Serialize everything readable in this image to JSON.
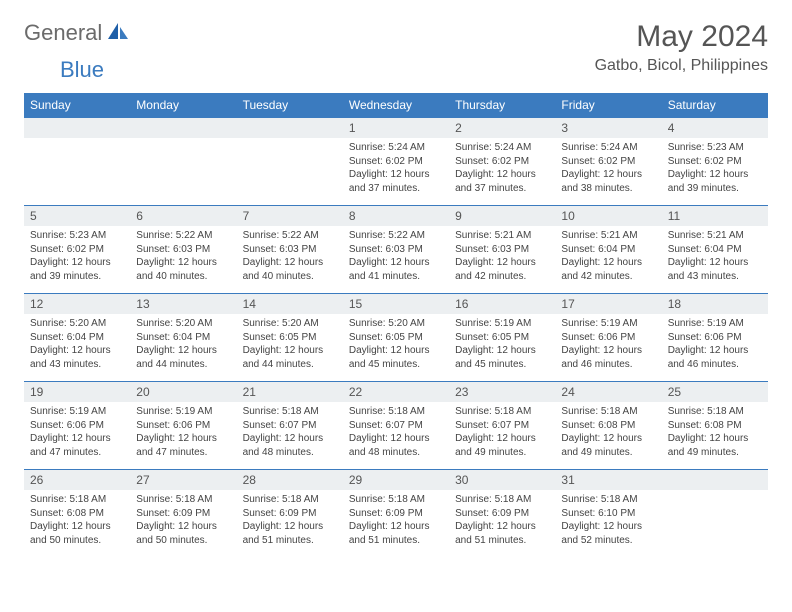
{
  "logo": {
    "part1": "General",
    "part2": "Blue"
  },
  "title": "May 2024",
  "location": "Gatbo, Bicol, Philippines",
  "colors": {
    "header_bg": "#3b7bbf",
    "header_text": "#ffffff",
    "daynum_bg": "#eceff1",
    "cell_border": "#3b7bbf",
    "body_text": "#444444",
    "title_text": "#555555"
  },
  "weekdays": [
    "Sunday",
    "Monday",
    "Tuesday",
    "Wednesday",
    "Thursday",
    "Friday",
    "Saturday"
  ],
  "weeks": [
    [
      null,
      null,
      null,
      {
        "n": "1",
        "sr": "5:24 AM",
        "ss": "6:02 PM",
        "dl": "12 hours and 37 minutes."
      },
      {
        "n": "2",
        "sr": "5:24 AM",
        "ss": "6:02 PM",
        "dl": "12 hours and 37 minutes."
      },
      {
        "n": "3",
        "sr": "5:24 AM",
        "ss": "6:02 PM",
        "dl": "12 hours and 38 minutes."
      },
      {
        "n": "4",
        "sr": "5:23 AM",
        "ss": "6:02 PM",
        "dl": "12 hours and 39 minutes."
      }
    ],
    [
      {
        "n": "5",
        "sr": "5:23 AM",
        "ss": "6:02 PM",
        "dl": "12 hours and 39 minutes."
      },
      {
        "n": "6",
        "sr": "5:22 AM",
        "ss": "6:03 PM",
        "dl": "12 hours and 40 minutes."
      },
      {
        "n": "7",
        "sr": "5:22 AM",
        "ss": "6:03 PM",
        "dl": "12 hours and 40 minutes."
      },
      {
        "n": "8",
        "sr": "5:22 AM",
        "ss": "6:03 PM",
        "dl": "12 hours and 41 minutes."
      },
      {
        "n": "9",
        "sr": "5:21 AM",
        "ss": "6:03 PM",
        "dl": "12 hours and 42 minutes."
      },
      {
        "n": "10",
        "sr": "5:21 AM",
        "ss": "6:04 PM",
        "dl": "12 hours and 42 minutes."
      },
      {
        "n": "11",
        "sr": "5:21 AM",
        "ss": "6:04 PM",
        "dl": "12 hours and 43 minutes."
      }
    ],
    [
      {
        "n": "12",
        "sr": "5:20 AM",
        "ss": "6:04 PM",
        "dl": "12 hours and 43 minutes."
      },
      {
        "n": "13",
        "sr": "5:20 AM",
        "ss": "6:04 PM",
        "dl": "12 hours and 44 minutes."
      },
      {
        "n": "14",
        "sr": "5:20 AM",
        "ss": "6:05 PM",
        "dl": "12 hours and 44 minutes."
      },
      {
        "n": "15",
        "sr": "5:20 AM",
        "ss": "6:05 PM",
        "dl": "12 hours and 45 minutes."
      },
      {
        "n": "16",
        "sr": "5:19 AM",
        "ss": "6:05 PM",
        "dl": "12 hours and 45 minutes."
      },
      {
        "n": "17",
        "sr": "5:19 AM",
        "ss": "6:06 PM",
        "dl": "12 hours and 46 minutes."
      },
      {
        "n": "18",
        "sr": "5:19 AM",
        "ss": "6:06 PM",
        "dl": "12 hours and 46 minutes."
      }
    ],
    [
      {
        "n": "19",
        "sr": "5:19 AM",
        "ss": "6:06 PM",
        "dl": "12 hours and 47 minutes."
      },
      {
        "n": "20",
        "sr": "5:19 AM",
        "ss": "6:06 PM",
        "dl": "12 hours and 47 minutes."
      },
      {
        "n": "21",
        "sr": "5:18 AM",
        "ss": "6:07 PM",
        "dl": "12 hours and 48 minutes."
      },
      {
        "n": "22",
        "sr": "5:18 AM",
        "ss": "6:07 PM",
        "dl": "12 hours and 48 minutes."
      },
      {
        "n": "23",
        "sr": "5:18 AM",
        "ss": "6:07 PM",
        "dl": "12 hours and 49 minutes."
      },
      {
        "n": "24",
        "sr": "5:18 AM",
        "ss": "6:08 PM",
        "dl": "12 hours and 49 minutes."
      },
      {
        "n": "25",
        "sr": "5:18 AM",
        "ss": "6:08 PM",
        "dl": "12 hours and 49 minutes."
      }
    ],
    [
      {
        "n": "26",
        "sr": "5:18 AM",
        "ss": "6:08 PM",
        "dl": "12 hours and 50 minutes."
      },
      {
        "n": "27",
        "sr": "5:18 AM",
        "ss": "6:09 PM",
        "dl": "12 hours and 50 minutes."
      },
      {
        "n": "28",
        "sr": "5:18 AM",
        "ss": "6:09 PM",
        "dl": "12 hours and 51 minutes."
      },
      {
        "n": "29",
        "sr": "5:18 AM",
        "ss": "6:09 PM",
        "dl": "12 hours and 51 minutes."
      },
      {
        "n": "30",
        "sr": "5:18 AM",
        "ss": "6:09 PM",
        "dl": "12 hours and 51 minutes."
      },
      {
        "n": "31",
        "sr": "5:18 AM",
        "ss": "6:10 PM",
        "dl": "12 hours and 52 minutes."
      },
      null
    ]
  ],
  "labels": {
    "sunrise": "Sunrise:",
    "sunset": "Sunset:",
    "daylight": "Daylight:"
  }
}
